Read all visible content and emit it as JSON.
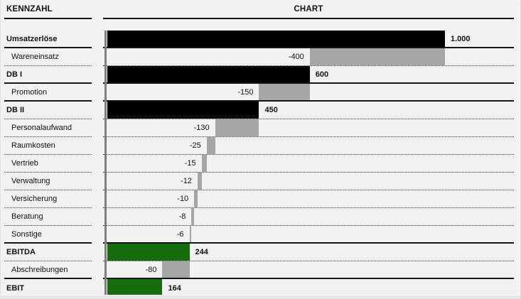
{
  "headers": {
    "left": "KENNZAHL",
    "chart": "CHART"
  },
  "colors": {
    "background": "#f2f2f2",
    "bar_total": "#000000",
    "bar_cost": "#a6a6a6",
    "bar_result": "#156e0b",
    "axis_line": "#7f7f7f",
    "text": "#111111"
  },
  "rows": [
    {
      "id": "umsatzerloese",
      "label": "Umsatzerlöse",
      "value": 1000,
      "value_label": "1.000",
      "role": "total",
      "bold": true,
      "indent": false,
      "cum_start": 0,
      "cum_end": 1000,
      "label_side": "right",
      "separator": "solid"
    },
    {
      "id": "wareneinsatz",
      "label": "Wareneinsatz",
      "value": -400,
      "value_label": "-400",
      "role": "cost",
      "bold": false,
      "indent": true,
      "cum_start": 600,
      "cum_end": 1000,
      "label_side": "left",
      "separator": "dotted"
    },
    {
      "id": "db-i",
      "label": "DB I",
      "value": 600,
      "value_label": "600",
      "role": "total",
      "bold": true,
      "indent": false,
      "cum_start": 0,
      "cum_end": 600,
      "label_side": "right",
      "separator": "solid"
    },
    {
      "id": "promotion",
      "label": "Promotion",
      "value": -150,
      "value_label": "-150",
      "role": "cost",
      "bold": false,
      "indent": true,
      "cum_start": 450,
      "cum_end": 600,
      "label_side": "left",
      "separator": "solid"
    },
    {
      "id": "db-ii",
      "label": "DB II",
      "value": 450,
      "value_label": "450",
      "role": "total",
      "bold": true,
      "indent": false,
      "cum_start": 0,
      "cum_end": 450,
      "label_side": "right",
      "separator": "dotted"
    },
    {
      "id": "personalaufwand",
      "label": "Personalaufwand",
      "value": -130,
      "value_label": "-130",
      "role": "cost",
      "bold": false,
      "indent": true,
      "cum_start": 320,
      "cum_end": 450,
      "label_side": "left",
      "separator": "dotted"
    },
    {
      "id": "raumkosten",
      "label": "Raumkosten",
      "value": -25,
      "value_label": "-25",
      "role": "cost",
      "bold": false,
      "indent": true,
      "cum_start": 295,
      "cum_end": 320,
      "label_side": "left",
      "separator": "dotted"
    },
    {
      "id": "vertrieb",
      "label": "Vertrieb",
      "value": -15,
      "value_label": "-15",
      "role": "cost",
      "bold": false,
      "indent": true,
      "cum_start": 280,
      "cum_end": 295,
      "label_side": "left",
      "separator": "dotted"
    },
    {
      "id": "verwaltung",
      "label": "Verwaltung",
      "value": -12,
      "value_label": "-12",
      "role": "cost",
      "bold": false,
      "indent": true,
      "cum_start": 268,
      "cum_end": 280,
      "label_side": "left",
      "separator": "dotted"
    },
    {
      "id": "versicherung",
      "label": "Versicherung",
      "value": -10,
      "value_label": "-10",
      "role": "cost",
      "bold": false,
      "indent": true,
      "cum_start": 258,
      "cum_end": 268,
      "label_side": "left",
      "separator": "dotted"
    },
    {
      "id": "beratung",
      "label": "Beratung",
      "value": -8,
      "value_label": "-8",
      "role": "cost",
      "bold": false,
      "indent": true,
      "cum_start": 250,
      "cum_end": 258,
      "label_side": "left",
      "separator": "dotted"
    },
    {
      "id": "sonstige",
      "label": "Sonstige",
      "value": -6,
      "value_label": "-6",
      "role": "cost",
      "bold": false,
      "indent": true,
      "cum_start": 244,
      "cum_end": 250,
      "label_side": "left",
      "separator": "solid"
    },
    {
      "id": "ebitda",
      "label": "EBITDA",
      "value": 244,
      "value_label": "244",
      "role": "result",
      "bold": true,
      "indent": false,
      "cum_start": 0,
      "cum_end": 244,
      "label_side": "right",
      "separator": "dotted"
    },
    {
      "id": "abschreibungen",
      "label": "Abschreibungen",
      "value": -80,
      "value_label": "-80",
      "role": "cost",
      "bold": false,
      "indent": true,
      "cum_start": 164,
      "cum_end": 244,
      "label_side": "left",
      "separator": "solid"
    },
    {
      "id": "ebit",
      "label": "EBIT",
      "value": 164,
      "value_label": "164",
      "role": "result",
      "bold": true,
      "indent": false,
      "cum_start": 0,
      "cum_end": 164,
      "label_side": "right",
      "separator": "none"
    }
  ],
  "chart_data": {
    "type": "bar",
    "subtype": "horizontal_waterfall",
    "title": "CHART",
    "left_column_title": "KENNZAHL",
    "orientation": "horizontal",
    "xlim": [
      0,
      1000
    ],
    "grid": false,
    "legend": false,
    "categories": [
      "Umsatzerlöse",
      "Wareneinsatz",
      "DB I",
      "Promotion",
      "DB II",
      "Personalaufwand",
      "Raumkosten",
      "Vertrieb",
      "Verwaltung",
      "Versicherung",
      "Beratung",
      "Sonstige",
      "EBITDA",
      "Abschreibungen",
      "EBIT"
    ],
    "values": [
      1000,
      -400,
      600,
      -150,
      450,
      -130,
      -25,
      -15,
      -12,
      -10,
      -8,
      -6,
      244,
      -80,
      164
    ],
    "value_labels": [
      "1.000",
      "-400",
      "600",
      "-150",
      "450",
      "-130",
      "-25",
      "-15",
      "-12",
      "-10",
      "-8",
      "-6",
      "244",
      "-80",
      "164"
    ],
    "bar_roles": [
      "total",
      "cost",
      "total",
      "cost",
      "total",
      "cost",
      "cost",
      "cost",
      "cost",
      "cost",
      "cost",
      "cost",
      "result",
      "cost",
      "result"
    ],
    "role_colors": {
      "total": "#000000",
      "cost": "#a6a6a6",
      "result": "#156e0b"
    }
  }
}
